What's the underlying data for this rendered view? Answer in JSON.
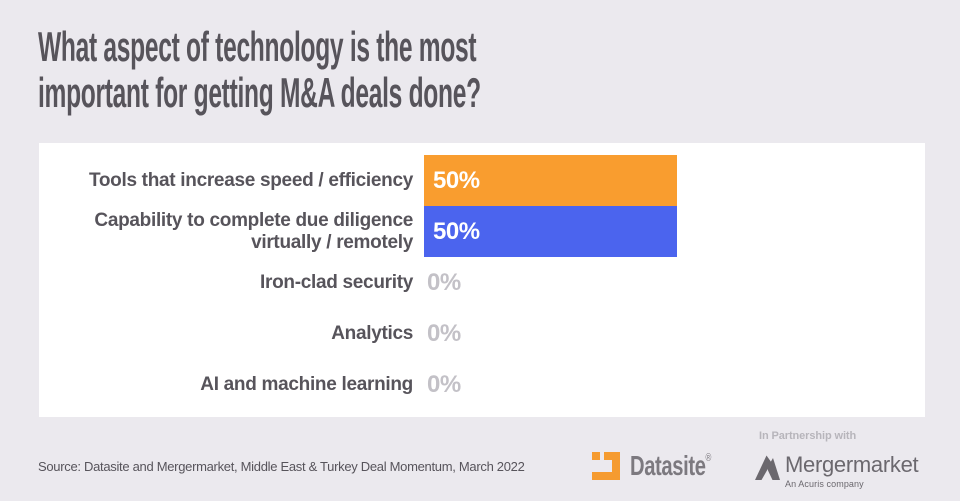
{
  "title": "What aspect of technology is the most\nimportant for getting M&A deals done?",
  "chart_data": {
    "type": "bar",
    "orientation": "horizontal",
    "title": "What aspect of technology is the most important for getting M&A deals done?",
    "categories": [
      "Tools that increase speed / efficiency",
      "Capability to complete due diligence virtually / remotely",
      "Iron-clad security",
      "Analytics",
      "AI and machine learning"
    ],
    "values": [
      50,
      50,
      0,
      0,
      0
    ],
    "value_labels": [
      "50%",
      "50%",
      "0%",
      "0%",
      "0%"
    ],
    "bar_colors": [
      "#F99D2F",
      "#4B64EE",
      null,
      null,
      null
    ],
    "xlim": [
      0,
      100
    ],
    "grid": false,
    "legend": false
  },
  "footer": {
    "source": "Source: Datasite and Mergermarket, Middle East & Turkey Deal Momentum, March 2022",
    "partnership_label": "In Partnership with",
    "datasite_label": "Datasite",
    "datasite_registered": "®",
    "mergermarket_label": "Mergermarket",
    "acuris_label": "An Acuris company"
  },
  "colors": {
    "background": "#EBE9EE",
    "panel": "#FFFFFF",
    "text_dark": "#57545B",
    "orange": "#F99D2F",
    "blue": "#4B64EE",
    "zero_gray": "#C3C1C7",
    "datasite_gray": "#7C797F",
    "mergermarket_gray": "#6B686E",
    "partnership_gray": "#B7B5BB"
  }
}
